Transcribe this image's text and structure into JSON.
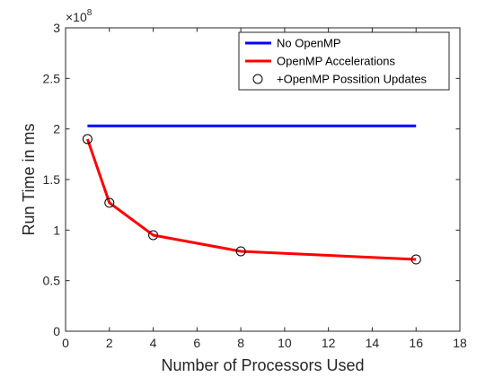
{
  "chart_data": {
    "type": "line",
    "xlabel": "Number of Processors Used",
    "ylabel": "Run Time in ms",
    "xlim": [
      0,
      18
    ],
    "ylim": [
      0,
      300000000
    ],
    "x_ticks": [
      0,
      2,
      4,
      6,
      8,
      10,
      12,
      14,
      16,
      18
    ],
    "y_ticks": [
      0,
      50000000,
      100000000,
      150000000,
      200000000,
      250000000,
      300000000
    ],
    "y_tick_labels": [
      "0",
      "0.5",
      "1",
      "1.5",
      "2",
      "2.5",
      "3"
    ],
    "y_exponent_label": "×10",
    "y_exponent": "8",
    "grid": false,
    "legend_position": "top-right",
    "series": [
      {
        "name": "No OpenMP",
        "style": "line",
        "color": "#0000ff",
        "x": [
          1,
          16
        ],
        "y": [
          203000000,
          203000000
        ]
      },
      {
        "name": "OpenMP Accelerations",
        "style": "line",
        "color": "#ff0000",
        "x": [
          1,
          2,
          4,
          8,
          16
        ],
        "y": [
          190000000,
          127000000,
          95000000,
          79000000,
          71000000
        ]
      },
      {
        "name": "+OpenMP Possition Updates",
        "style": "markers",
        "marker": "open-circle",
        "color": "#000000",
        "x": [
          1,
          2,
          4,
          8,
          16
        ],
        "y": [
          190000000,
          127000000,
          95000000,
          79000000,
          71000000
        ]
      }
    ]
  }
}
